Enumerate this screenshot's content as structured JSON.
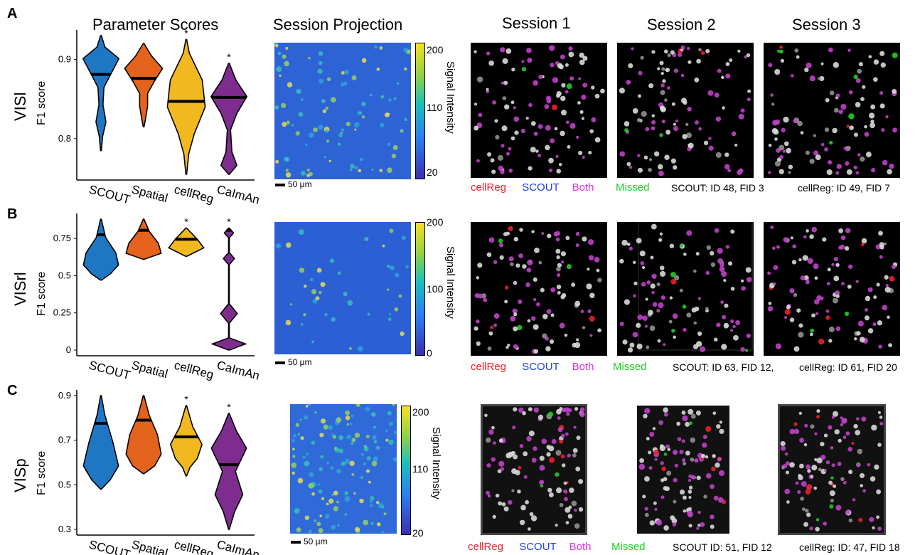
{
  "headers": {
    "parameter_scores": "Parameter Scores",
    "session_projection": "Session Projection",
    "sessions": [
      "Session 1",
      "Session 2",
      "Session 3"
    ]
  },
  "colors": {
    "SCOUT": "#1f77c4",
    "Spatial": "#e3631c",
    "cellReg": "#f2b81f",
    "CaImAn": "#7e2d8e",
    "legend_cellReg": "#e8202a",
    "legend_SCOUT": "#1f3ee8",
    "legend_Both": "#e030e0",
    "legend_Missed": "#22cc22"
  },
  "scale_bar_label": "50 μm",
  "colorbar_title": "Signal Intensity",
  "legend_labels": [
    "cellReg",
    "SCOUT",
    "Both",
    "Missed"
  ],
  "rows": [
    {
      "letter": "A",
      "region": "VISl",
      "ylabel": "F1 score",
      "colorbar_ticks": [
        "200",
        "110",
        "20"
      ],
      "caption_scout": "SCOUT: ID 48, FID 3",
      "caption_cellreg": "cellReg: ID 49, FID 7"
    },
    {
      "letter": "B",
      "region": "VISrl",
      "ylabel": "F1 score",
      "colorbar_ticks": [
        "200",
        "100",
        "0"
      ],
      "caption_scout": "SCOUT: ID 63, FID 12,",
      "caption_cellreg": "cellReg: ID 61, FID 20"
    },
    {
      "letter": "C",
      "region": "VISp",
      "ylabel": "F1 score",
      "colorbar_ticks": [
        "200",
        "110",
        "20"
      ],
      "caption_scout": "SCOUT ID: 51, FID 12",
      "caption_cellreg": "cellReg: ID: 47, FID 18"
    }
  ],
  "chart_data": [
    {
      "type": "violin",
      "panel": "A",
      "ylabel": "F1 score",
      "yticks": [
        "0.9",
        "0.8"
      ],
      "ylim": [
        0.755,
        0.93
      ],
      "categories": [
        "SCOUT",
        "Spatial",
        "cellReg",
        "CaImAn"
      ],
      "medians": [
        0.881,
        0.876,
        0.847,
        0.852
      ],
      "ranges": [
        [
          0.785,
          0.93
        ],
        [
          0.815,
          0.92
        ],
        [
          0.755,
          0.925
        ],
        [
          0.755,
          0.895
        ]
      ],
      "significance": [
        "",
        "",
        "*",
        "*"
      ]
    },
    {
      "type": "violin",
      "panel": "B",
      "ylabel": "F1 score",
      "yticks": [
        "0.75",
        "0.5",
        "0.25",
        "0"
      ],
      "ylim": [
        0,
        0.88
      ],
      "categories": [
        "SCOUT",
        "Spatial",
        "cellReg",
        "CaImAn"
      ],
      "medians": [
        0.775,
        0.805,
        0.745,
        0.805
      ],
      "ranges": [
        [
          0.47,
          0.88
        ],
        [
          0.61,
          0.88
        ],
        [
          0.63,
          0.82
        ],
        [
          0.0,
          0.82
        ]
      ],
      "significance": [
        "",
        "",
        "*",
        "*"
      ]
    },
    {
      "type": "violin",
      "panel": "C",
      "ylabel": "F1 score",
      "yticks": [
        "0.9",
        "0.7",
        "0.5",
        "0.3"
      ],
      "ylim": [
        0.3,
        0.9
      ],
      "categories": [
        "SCOUT",
        "Spatial",
        "cellReg",
        "CaImAn"
      ],
      "medians": [
        0.776,
        0.79,
        0.715,
        0.59
      ],
      "ranges": [
        [
          0.48,
          0.9
        ],
        [
          0.55,
          0.9
        ],
        [
          0.54,
          0.855
        ],
        [
          0.3,
          0.82
        ]
      ],
      "significance": [
        "",
        "",
        "*",
        "*"
      ]
    }
  ]
}
